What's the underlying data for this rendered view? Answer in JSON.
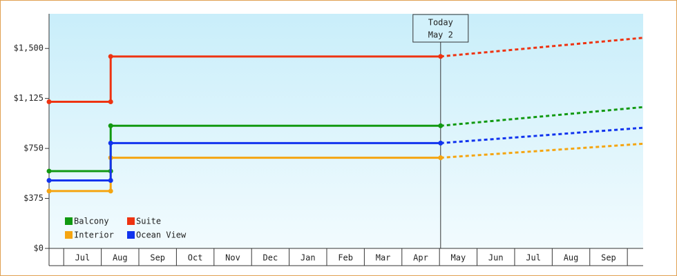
{
  "chart_data": {
    "type": "line",
    "categories": [
      "Jul",
      "Aug",
      "Sep",
      "Oct",
      "Nov",
      "Dec",
      "Jan",
      "Feb",
      "Mar",
      "Apr",
      "May",
      "Jun",
      "Jul",
      "Aug",
      "Sep"
    ],
    "x": [
      -0.39,
      1.25,
      1.25,
      10.03
    ],
    "forecast_x": [
      10.03,
      15.42
    ],
    "xlim": [
      -0.39,
      15.42
    ],
    "ylim": [
      0,
      1760
    ],
    "yticks": [
      {
        "value": 0,
        "label": "$0"
      },
      {
        "value": 375,
        "label": "$375"
      },
      {
        "value": 750,
        "label": "$750"
      },
      {
        "value": 1125,
        "label": "$1,125"
      },
      {
        "value": 1500,
        "label": "$1,500"
      }
    ],
    "series": [
      {
        "name": "Balcony",
        "color": "#119911",
        "values": [
          580,
          580,
          920,
          920
        ],
        "forecast": [
          920,
          1060
        ]
      },
      {
        "name": "Suite",
        "color": "#ee3311",
        "values": [
          1100,
          1100,
          1440,
          1440
        ],
        "forecast": [
          1440,
          1580
        ]
      },
      {
        "name": "Interior",
        "color": "#f5a511",
        "values": [
          430,
          430,
          680,
          680
        ],
        "forecast": [
          680,
          785
        ]
      },
      {
        "name": "Ocean View",
        "color": "#1133ee",
        "values": [
          510,
          510,
          790,
          790
        ],
        "forecast": [
          790,
          905
        ]
      }
    ],
    "annotation": {
      "x": 10.03,
      "lines": [
        "Today",
        "May 2"
      ]
    }
  }
}
